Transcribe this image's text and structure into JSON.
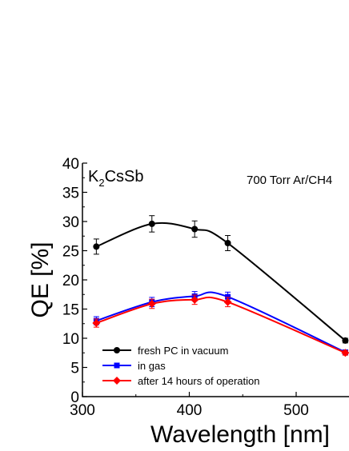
{
  "chart_data": {
    "type": "line",
    "xlabel": "Wavelength [nm]",
    "ylabel": "QE [%]",
    "xlim": [
      300,
      555
    ],
    "ylim": [
      0,
      40
    ],
    "xticks": [
      300,
      400,
      500
    ],
    "yticks": [
      0,
      5,
      10,
      15,
      20,
      25,
      30,
      35,
      40
    ],
    "grid": false,
    "legend_position": "bottom-left",
    "annotations": {
      "material_main": "K",
      "material_sub": "2",
      "material_rest": "CsSb",
      "condition": "700 Torr Ar/CH4"
    },
    "x": [
      313,
      365,
      405,
      436,
      546
    ],
    "series": [
      {
        "name": "fresh PC in vacuum",
        "color": "#000000",
        "marker": "circle",
        "values": [
          25.7,
          29.6,
          28.7,
          26.3,
          9.6
        ],
        "errors": [
          1.3,
          1.4,
          1.4,
          1.3,
          0.4
        ]
      },
      {
        "name": "in gas",
        "color": "#0000ff",
        "marker": "square",
        "values": [
          13.0,
          16.2,
          17.2,
          17.1,
          7.6
        ],
        "errors": [
          0.7,
          0.8,
          0.8,
          0.8,
          0.4
        ]
      },
      {
        "name": "after 14 hours of operation",
        "color": "#ff0000",
        "marker": "diamond",
        "values": [
          12.6,
          15.9,
          16.6,
          16.2,
          7.5
        ],
        "errors": [
          0.7,
          0.8,
          0.8,
          0.8,
          0.4
        ]
      }
    ]
  }
}
